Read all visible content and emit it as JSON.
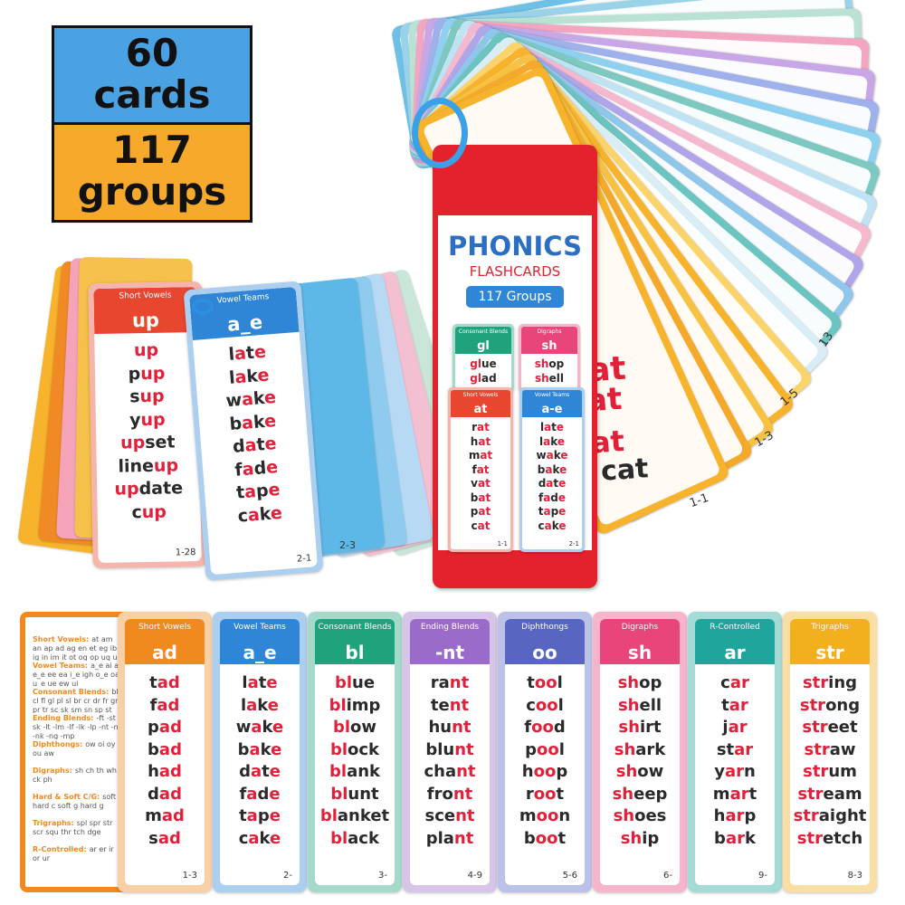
{
  "badge": {
    "count": "60",
    "count_unit": "cards",
    "groups": "117",
    "groups_unit": "groups"
  },
  "left_fan": {
    "cards": [
      {
        "category": "Short Vowels",
        "header": "up",
        "words": [
          "up",
          "pup",
          "sup",
          "yup",
          "upset",
          "lineup",
          "update",
          "cup"
        ],
        "number": "1-28",
        "color": "#e8462f"
      },
      {
        "category": "Vowel Teams",
        "header": "a_e",
        "words": [
          "late",
          "lake",
          "wake",
          "bake",
          "date",
          "fade",
          "tape",
          "cake"
        ],
        "number": "2-1",
        "color": "#2f86d6"
      }
    ],
    "back_number": "2-3"
  },
  "box": {
    "title": "PHONICS",
    "subtitle": "FLASHCARDS",
    "groups": "117 Groups",
    "cards": [
      {
        "category": "Consonant Blends",
        "header": "gl",
        "words": [
          "glue",
          "glad"
        ],
        "color": "#1fa37c"
      },
      {
        "category": "Digraphs",
        "header": "sh",
        "words": [
          "shop",
          "shell"
        ],
        "color": "#e8467a"
      },
      {
        "category": "Short Vowels",
        "header": "at",
        "words": [
          "rat",
          "hat",
          "mat",
          "fat",
          "vat",
          "bat",
          "pat",
          "cat"
        ],
        "number": "1-1",
        "color": "#e8462f"
      },
      {
        "category": "Vowel Teams",
        "header": "a-e",
        "words": [
          "late",
          "lake",
          "wake",
          "bake",
          "date",
          "fade",
          "tape",
          "cake"
        ],
        "number": "2-1",
        "color": "#2f86d6"
      }
    ]
  },
  "fan": {
    "words": [
      "at",
      "at",
      "pat",
      "cat"
    ],
    "numbers": [
      "1-1",
      "1-3",
      "1-5",
      "13"
    ]
  },
  "index_card": {
    "entries": [
      {
        "label": "Short Vowels:",
        "text": "at am an ap ad ag en et eg ib ig in im it ot og op ug un ut ub up"
      },
      {
        "label": "Vowel Teams:",
        "text": "a_e ai ay e_e ee ea i_e igh o_e oa u_e ue ew ui"
      },
      {
        "label": "Consonant Blends:",
        "text": "bl cl fl gl pl sl br cr dr fr gr pr tr sc sk sm sn sp st sw"
      },
      {
        "label": "Ending Blends:",
        "text": "-ft -st -sk -lt -lm -lf -lk -lp -nt -nd -nk -ng -mp"
      },
      {
        "label": "Diphthongs:",
        "text": "ow oi oy ou aw"
      },
      {
        "label": "Digraphs:",
        "text": "sh ch th wh ck ph"
      },
      {
        "label": "Hard & Soft C/G:",
        "text": "soft c hard c soft g hard g"
      },
      {
        "label": "Trigraphs:",
        "text": "spl spr str scr squ thr tch dge"
      },
      {
        "label": "R-Controlled:",
        "text": "ar er ir or ur"
      }
    ]
  },
  "strip": {
    "cards": [
      {
        "category": "Short Vowels",
        "header": "ad",
        "words": [
          "tad",
          "fad",
          "pad",
          "bad",
          "had",
          "dad",
          "mad",
          "sad"
        ],
        "number": "1-3",
        "color": "#f08a1f"
      },
      {
        "category": "Vowel Teams",
        "header": "a_e",
        "words": [
          "late",
          "lake",
          "wake",
          "bake",
          "date",
          "fade",
          "tape",
          "cake"
        ],
        "number": "2-",
        "color": "#2f86d6"
      },
      {
        "category": "Consonant Blends",
        "header": "bl",
        "words": [
          "blue",
          "blimp",
          "blow",
          "block",
          "blank",
          "blunt",
          "blanket",
          "black"
        ],
        "number": "3-",
        "color": "#1fa37c"
      },
      {
        "category": "Ending Blends",
        "header": "-nt",
        "words": [
          "rant",
          "tent",
          "hunt",
          "blunt",
          "chant",
          "front",
          "scent",
          "plant"
        ],
        "number": "4-9",
        "color": "#9b6bc9"
      },
      {
        "category": "Diphthongs",
        "header": "oo",
        "words": [
          "tool",
          "cool",
          "food",
          "pool",
          "hoop",
          "root",
          "moon",
          "boot"
        ],
        "number": "5-6",
        "color": "#5866c2"
      },
      {
        "category": "Digraphs",
        "header": "sh",
        "words": [
          "shop",
          "shell",
          "shirt",
          "shark",
          "show",
          "sheep",
          "shoes",
          "ship"
        ],
        "number": "6-",
        "color": "#e8467a"
      },
      {
        "category": "R-Controlled",
        "header": "ar",
        "words": [
          "car",
          "tar",
          "jar",
          "star",
          "yarn",
          "mart",
          "harp",
          "bark"
        ],
        "number": "9-",
        "color": "#1fa59b"
      },
      {
        "category": "Trigraphs",
        "header": "str",
        "words": [
          "string",
          "strong",
          "street",
          "straw",
          "strum",
          "stream",
          "straight",
          "stretch"
        ],
        "number": "8-3",
        "color": "#f2b01e"
      }
    ]
  }
}
